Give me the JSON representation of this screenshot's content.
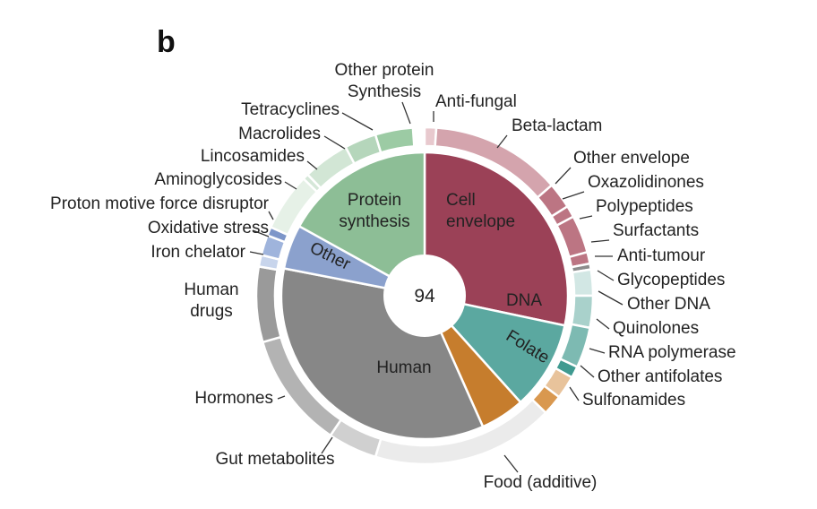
{
  "panel_label": "b",
  "chart_data": {
    "type": "pie",
    "subtype": "sunburst",
    "center_value": "94",
    "inner": [
      {
        "key": "cell",
        "label": "Cell\nenvelope",
        "angle_start": 0,
        "angle_end": 102,
        "color": "#9b4157"
      },
      {
        "key": "dna",
        "label": "DNA",
        "angle_start": 102,
        "angle_end": 138,
        "color": "#5ba8a0"
      },
      {
        "key": "folate",
        "label": "Folate",
        "angle_start": 138,
        "angle_end": 156,
        "color": "#c67d2d"
      },
      {
        "key": "human",
        "label": "Human",
        "angle_start": 156,
        "angle_end": 281,
        "color": "#878787"
      },
      {
        "key": "other",
        "label": "Other",
        "angle_start": 281,
        "angle_end": 299,
        "color": "#8ba1cd"
      },
      {
        "key": "prot",
        "label": "Protein\nsynthesis",
        "angle_start": 299,
        "angle_end": 360,
        "color": "#8dbe96"
      }
    ],
    "outer": [
      {
        "key": "antifungal",
        "label": "Anti-fungal",
        "angle_start": 0,
        "angle_end": 4,
        "color": "#e8c9ce"
      },
      {
        "key": "betalactam",
        "label": "Beta-lactam",
        "angle_start": 4,
        "angle_end": 49,
        "color": "#d4a4ad"
      },
      {
        "key": "otherenv",
        "label": "Other envelope",
        "angle_start": 49,
        "angle_end": 58,
        "color": "#bc7583"
      },
      {
        "key": "oxazolidinones",
        "label": "Oxazolidinones",
        "angle_start": 58,
        "angle_end": 62,
        "color": "#bc7583"
      },
      {
        "key": "polypeptides",
        "label": "Polypeptides",
        "angle_start": 62,
        "angle_end": 75,
        "color": "#bc7583"
      },
      {
        "key": "surfactants",
        "label": "Surfactants",
        "angle_start": 75,
        "angle_end": 79,
        "color": "#bc7583"
      },
      {
        "key": "antitumour",
        "label": "Anti-tumour",
        "angle_start": 79,
        "angle_end": 81,
        "color": "#8c8c8c"
      },
      {
        "key": "glycopeptides",
        "label": "Glycopeptides",
        "angle_start": 81,
        "angle_end": 90,
        "color": "#d2e7e4"
      },
      {
        "key": "otherdna",
        "label": "Other DNA",
        "angle_start": 90,
        "angle_end": 101,
        "color": "#a9d1cb"
      },
      {
        "key": "quinolones",
        "label": "Quinolones",
        "angle_start": 101,
        "angle_end": 115,
        "color": "#7dbab2"
      },
      {
        "key": "rnapol",
        "label": "RNA polymerase",
        "angle_start": 115,
        "angle_end": 119,
        "color": "#3f9a90"
      },
      {
        "key": "otherantifol",
        "label": "Other antifolates",
        "angle_start": 119,
        "angle_end": 127,
        "color": "#e8c39b"
      },
      {
        "key": "sulfonamides",
        "label": "Sulfonamides",
        "angle_start": 127,
        "angle_end": 134,
        "color": "#d9984f"
      },
      {
        "key": "food",
        "label": "Food (additive)",
        "angle_start": 134,
        "angle_end": 197,
        "color": "#ebebeb"
      },
      {
        "key": "gut",
        "label": "Gut metabolites",
        "angle_start": 197,
        "angle_end": 214,
        "color": "#d0d0d0"
      },
      {
        "key": "hormones",
        "label": "Hormones",
        "angle_start": 214,
        "angle_end": 254,
        "color": "#b3b3b3"
      },
      {
        "key": "humandrugs",
        "label": "Human\ndrugs",
        "angle_start": 254,
        "angle_end": 280,
        "color": "#9a9a9a"
      },
      {
        "key": "ironchel",
        "label": "Iron chelator",
        "angle_start": 280,
        "angle_end": 284,
        "color": "#c8d5ec"
      },
      {
        "key": "oxstress",
        "label": "Oxidative stress",
        "angle_start": 284,
        "angle_end": 291,
        "color": "#9fb4dc"
      },
      {
        "key": "pmf",
        "label": "Proton motive force disruptor",
        "angle_start": 291,
        "angle_end": 294,
        "color": "#7d96c9"
      },
      {
        "key": "aminoglycosides",
        "label": "Aminoglycosides",
        "angle_start": 294,
        "angle_end": 314,
        "color": "#e6f1e7"
      },
      {
        "key": "lincosamides",
        "label": "Lincosamides",
        "angle_start": 314,
        "angle_end": 316,
        "color": "#d5e7d8"
      },
      {
        "key": "macrolides",
        "label": "Macrolides",
        "angle_start": 316,
        "angle_end": 332,
        "color": "#d2e6d5"
      },
      {
        "key": "tetracyclines",
        "label": "Tetracyclines",
        "angle_start": 332,
        "angle_end": 343,
        "color": "#b5d6bb"
      },
      {
        "key": "otherprotsynth",
        "label": "Other protein\nSynthesis",
        "angle_start": 343,
        "angle_end": 356,
        "color": "#9ccba4"
      }
    ]
  }
}
